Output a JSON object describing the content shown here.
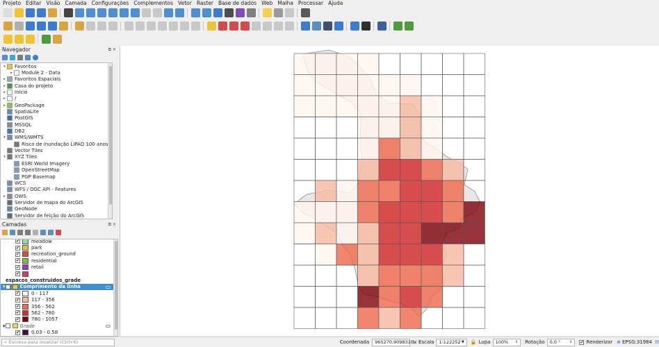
{
  "menubar": [
    "Projeto",
    "Editar",
    "Visão",
    "Camada",
    "Configurações",
    "Complementos",
    "Vetor",
    "Raster",
    "Base de dados",
    "Web",
    "Malha",
    "Processar",
    "Ajuda"
  ],
  "browser": {
    "title": "Navegador",
    "items": [
      {
        "label": "Favoritos",
        "indent": 0,
        "arrow": "▾",
        "color": "#f2c230"
      },
      {
        "label": "Module 2 - Data",
        "indent": 1,
        "arrow": "▸",
        "color": "#f5f5f5"
      },
      {
        "label": "Favoritos Espaciais",
        "indent": 0,
        "arrow": "▸",
        "color": "#9aa7b5"
      },
      {
        "label": "Casa do projeto",
        "indent": 0,
        "arrow": "▸",
        "color": "#4f9a3c"
      },
      {
        "label": "Início",
        "indent": 0,
        "arrow": "▸",
        "color": "#f5f5f5"
      },
      {
        "label": "/",
        "indent": 0,
        "arrow": "▸",
        "color": "#f5f5f5"
      },
      {
        "label": "GeoPackage",
        "indent": 0,
        "arrow": "▸",
        "color": "#8fbf4f"
      },
      {
        "label": "SpatiaLite",
        "indent": 0,
        "arrow": "",
        "color": "#5f8fc0"
      },
      {
        "label": "PostGIS",
        "indent": 0,
        "arrow": "",
        "color": "#3b6ea5"
      },
      {
        "label": "MSSQL",
        "indent": 0,
        "arrow": "",
        "color": "#8c8c8c"
      },
      {
        "label": "DB2",
        "indent": 0,
        "arrow": "",
        "color": "#3b7bbd"
      },
      {
        "label": "WMS/WMTS",
        "indent": 0,
        "arrow": "▾",
        "color": "#6d8fb8"
      },
      {
        "label": "Risco de inundação LiPAD 100 anos",
        "indent": 1,
        "arrow": "",
        "color": "#777777"
      },
      {
        "label": "Vector Tiles",
        "indent": 0,
        "arrow": "",
        "color": "#777777"
      },
      {
        "label": "XYZ Tiles",
        "indent": 0,
        "arrow": "▾",
        "color": "#777777"
      },
      {
        "label": "ESRI World Imagery",
        "indent": 1,
        "arrow": "",
        "color": "#7e9ec4"
      },
      {
        "label": "OpenStreetMap",
        "indent": 1,
        "arrow": "",
        "color": "#7e9ec4"
      },
      {
        "label": "PGP Basemap",
        "indent": 1,
        "arrow": "",
        "color": "#7e9ec4"
      },
      {
        "label": "WCS",
        "indent": 0,
        "arrow": "",
        "color": "#6d8fb8"
      },
      {
        "label": "WFS / OGC API - Features",
        "indent": 0,
        "arrow": "",
        "color": "#6d8fb8"
      },
      {
        "label": "OWS",
        "indent": 0,
        "arrow": "▸",
        "color": "#8c8c8c"
      },
      {
        "label": "Servidor de mapa do ArcGIS",
        "indent": 0,
        "arrow": "",
        "color": "#5d6b7a"
      },
      {
        "label": "GeoNode",
        "indent": 0,
        "arrow": "",
        "color": "#5d8aa8"
      },
      {
        "label": "Servidor de feição do ArcGIS",
        "indent": 0,
        "arrow": "",
        "color": "#5d6b7a"
      }
    ]
  },
  "layers": {
    "title": "Camadas",
    "items": [
      {
        "label": "meadow",
        "type": "class",
        "color": "#8fe0a6"
      },
      {
        "label": "park",
        "type": "class",
        "color": "#e0c341"
      },
      {
        "label": "recreation_ground",
        "type": "class",
        "color": "#d94e3b"
      },
      {
        "label": "residential",
        "type": "class",
        "color": "#7fc03f"
      },
      {
        "label": "retail",
        "type": "class",
        "color": "#8c3fc8"
      },
      {
        "label": "",
        "type": "class",
        "color": "#d6386a"
      },
      {
        "label": "espacos_construidos_grade",
        "type": "layer-bold",
        "color": ""
      },
      {
        "label": "Comprimento da linha",
        "type": "layer-selected",
        "color": ""
      },
      {
        "label": "0 - 117",
        "type": "class",
        "color": "#fff5f0"
      },
      {
        "label": "117 - 356",
        "type": "class",
        "color": "#f7b9a1"
      },
      {
        "label": "356 - 562",
        "type": "class",
        "color": "#ef6a4e"
      },
      {
        "label": "562 - 780",
        "type": "class",
        "color": "#d32a2a"
      },
      {
        "label": "780 - 1057",
        "type": "class",
        "color": "#7f0610"
      },
      {
        "label": "Grade",
        "type": "layer-italic",
        "color": ""
      },
      {
        "label": "0.03 - 0.58",
        "type": "class",
        "color": "#4a0a4a"
      }
    ]
  },
  "status": {
    "search_placeholder": "Escreva para localizar (Ctrl+K)",
    "coord_label": "Coordenada",
    "coord_value": "965270,9098310",
    "scale_label": "Escala",
    "scale_value": "1:122252",
    "zoom_label": "Lupa",
    "zoom_value": "100%",
    "rotation_label": "Rotação",
    "rotation_value": "0,0 °",
    "render_label": "Renderizar",
    "crs_label": "EPSG:31984"
  }
}
